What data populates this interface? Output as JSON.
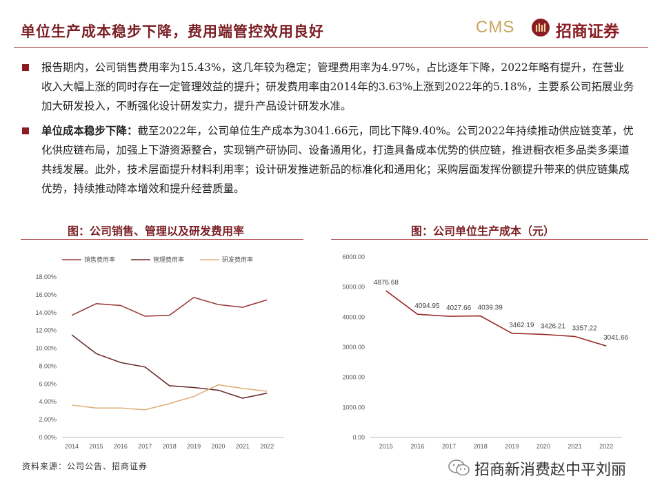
{
  "header": {
    "title": "单位生产成本稳步下降，费用端管控效用良好",
    "logo_cms": "CMS",
    "logo_cn": "招商证券"
  },
  "bullets": [
    {
      "bold": "",
      "text": "报告期内，公司销售费用率为15.43%，这几年较为稳定；管理费用率为4.97%，占比逐年下降，2022年略有提升，在营业收入大幅上涨的同时存在一定管理效益的提升；研发费用率由2014年的3.63%上涨到2022年的5.18%，主要系公司拓展业务加大研发投入，不断强化设计研发实力，提升产品设计研发水准。"
    },
    {
      "bold": "单位成本稳步下降：",
      "text": "截至2022年，公司单位生产成本为3041.66元，同比下降9.40%。公司2022年持续推动供应链变革，优化供应链布局，加强上下游资源整合，实现销产研协同、设备通用化，打造具备成本优势的供应链，推进橱衣柜多品类多渠道共线发展。此外，技术层面提升材料利用率；设计研发推进新品的标准化和通用化；采购层面发挥份额提升带来的供应链集成优势，持续推动降本增效和提升经营质量。"
    }
  ],
  "left_chart_title": "图：公司销售、管理以及研发费用率",
  "right_chart_title": "图：公司单位生产成本（元）",
  "source": "资料来源：公司公告、招商证券",
  "watermark": "招商新消费赵中平刘丽",
  "colors": {
    "accent": "#8b1c23",
    "gold": "#c8a45c"
  },
  "chart_data": [
    {
      "type": "line",
      "x": [
        "2014",
        "2015",
        "2016",
        "2017",
        "2018",
        "2019",
        "2020",
        "2021",
        "2022"
      ],
      "ylim": [
        0,
        18
      ],
      "yticks": [
        "0.00%",
        "2.00%",
        "4.00%",
        "6.00%",
        "8.00%",
        "10.00%",
        "12.00%",
        "14.00%",
        "16.00%",
        "18.00%"
      ],
      "legend_position": "top",
      "series": [
        {
          "name": "销售费用率",
          "color": "#9b3b3b",
          "values": [
            13.7,
            15.0,
            14.8,
            13.6,
            13.7,
            15.7,
            14.9,
            14.6,
            15.43
          ]
        },
        {
          "name": "管理费用率",
          "color": "#6b2c2c",
          "values": [
            11.5,
            9.4,
            8.4,
            7.9,
            5.8,
            5.6,
            5.3,
            4.4,
            4.97
          ]
        },
        {
          "name": "研发费用率",
          "color": "#e0b07a",
          "values": [
            3.63,
            3.3,
            3.3,
            3.1,
            3.8,
            4.6,
            5.9,
            5.5,
            5.18
          ]
        }
      ]
    },
    {
      "type": "line",
      "x": [
        "2015",
        "2016",
        "2017",
        "2018",
        "2019",
        "2020",
        "2021",
        "2022"
      ],
      "ylim": [
        0,
        6000
      ],
      "yticks": [
        "0.00",
        "1000.00",
        "2000.00",
        "3000.00",
        "4000.00",
        "5000.00",
        "6000.00"
      ],
      "series": [
        {
          "color": "#9b2a2a",
          "values": [
            4876.68,
            4094.95,
            4027.66,
            4039.39,
            3462.19,
            3426.21,
            3357.22,
            3041.66
          ],
          "labels": [
            "4876.68",
            "4094.95",
            "4027.66",
            "4039.39",
            "3462.19",
            "3426.21",
            "3357.22",
            "3041.66"
          ]
        }
      ]
    }
  ]
}
